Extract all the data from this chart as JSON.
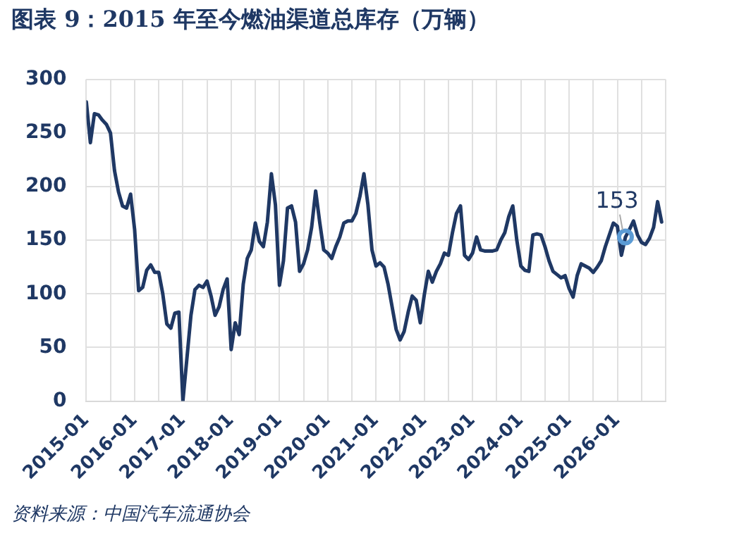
{
  "chart_data": {
    "type": "line",
    "title": "图表 9：2015 年至今燃油渠道总库存（万辆）",
    "x": [
      "2015-01",
      "2015-02",
      "2015-03",
      "2015-04",
      "2015-05",
      "2015-06",
      "2015-07",
      "2015-08",
      "2015-09",
      "2015-10",
      "2015-11",
      "2015-12",
      "2016-01",
      "2016-02",
      "2016-03",
      "2016-04",
      "2016-05",
      "2016-06",
      "2016-07",
      "2016-08",
      "2016-09",
      "2016-10",
      "2016-11",
      "2016-12",
      "2017-01",
      "2017-02",
      "2017-03",
      "2017-04",
      "2017-05",
      "2017-06",
      "2017-07",
      "2017-08",
      "2017-09",
      "2017-10",
      "2017-11",
      "2017-12",
      "2018-01",
      "2018-02",
      "2018-03",
      "2018-04",
      "2018-05",
      "2018-06",
      "2018-07",
      "2018-08",
      "2018-09",
      "2018-10",
      "2018-11",
      "2018-12",
      "2019-01",
      "2019-02",
      "2019-03",
      "2019-04",
      "2019-05",
      "2019-06",
      "2019-07",
      "2019-08",
      "2019-09",
      "2019-10",
      "2019-11",
      "2019-12",
      "2020-01",
      "2020-02",
      "2020-03",
      "2020-04",
      "2020-05",
      "2020-06",
      "2020-07",
      "2020-08",
      "2020-09",
      "2020-10",
      "2020-11",
      "2020-12",
      "2021-01",
      "2021-02",
      "2021-03",
      "2021-04",
      "2021-05",
      "2021-06",
      "2021-07",
      "2021-08",
      "2021-09",
      "2021-10",
      "2021-11",
      "2021-12",
      "2022-01",
      "2022-02",
      "2022-03",
      "2022-04",
      "2022-05",
      "2022-06",
      "2022-07",
      "2022-08",
      "2022-09",
      "2022-10",
      "2022-11",
      "2022-12",
      "2023-01",
      "2023-02",
      "2023-03",
      "2023-04",
      "2023-05",
      "2023-06",
      "2023-07",
      "2023-08",
      "2023-09",
      "2023-10",
      "2023-11",
      "2023-12",
      "2024-01",
      "2024-02",
      "2024-03",
      "2024-04",
      "2024-05",
      "2024-06",
      "2024-07",
      "2024-08",
      "2024-09",
      "2024-10",
      "2024-11",
      "2024-12",
      "2025-01",
      "2025-02",
      "2025-03",
      "2025-04",
      "2025-05",
      "2025-06",
      "2025-07",
      "2025-08",
      "2025-09",
      "2025-10",
      "2025-11",
      "2025-12",
      "2026-01",
      "2026-02",
      "2026-03",
      "2026-04",
      "2026-05",
      "2026-06",
      "2026-07",
      "2026-08",
      "2026-09",
      "2026-10",
      "2026-11",
      "2026-12"
    ],
    "series": [
      {
        "color": "#1f3864",
        "values": [
          279,
          241,
          268,
          267,
          262,
          258,
          250,
          215,
          195,
          182,
          180,
          193,
          160,
          103,
          106,
          122,
          127,
          120,
          120,
          100,
          72,
          68,
          82,
          83,
          0,
          40,
          80,
          104,
          108,
          106,
          112,
          98,
          80,
          88,
          104,
          114,
          48,
          73,
          62,
          109,
          133,
          141,
          166,
          149,
          144,
          167,
          212,
          183,
          108,
          131,
          180,
          182,
          167,
          121,
          128,
          141,
          162,
          196,
          167,
          141,
          138,
          133,
          144,
          153,
          166,
          168,
          168,
          175,
          191,
          212,
          183,
          141,
          126,
          129,
          125,
          109,
          88,
          67,
          57,
          65,
          83,
          98,
          94,
          73,
          99,
          121,
          111,
          121,
          128,
          138,
          136,
          157,
          175,
          182,
          136,
          132,
          138,
          153,
          141,
          140,
          140,
          140,
          141,
          150,
          157,
          172,
          182,
          150,
          126,
          122,
          121,
          155,
          156,
          155,
          144,
          131,
          121,
          118,
          115,
          117,
          105,
          97,
          117,
          128,
          126,
          124,
          120,
          125,
          131,
          144,
          155,
          166,
          163,
          136,
          153,
          160,
          168,
          155,
          148,
          146,
          152,
          162,
          186,
          167
        ]
      }
    ],
    "xlim": [
      "2015-01",
      "2027-01"
    ],
    "xticks": [
      {
        "value": "2015-01",
        "label": "2015-01"
      },
      {
        "value": "2015-07",
        "label": null
      },
      {
        "value": "2016-01",
        "label": "2016-01"
      },
      {
        "value": "2016-07",
        "label": null
      },
      {
        "value": "2017-01",
        "label": "2017-01"
      },
      {
        "value": "2017-07",
        "label": null
      },
      {
        "value": "2018-01",
        "label": "2018-01"
      },
      {
        "value": "2018-07",
        "label": null
      },
      {
        "value": "2019-01",
        "label": "2019-01"
      },
      {
        "value": "2019-07",
        "label": null
      },
      {
        "value": "2020-01",
        "label": "2020-01"
      },
      {
        "value": "2020-07",
        "label": null
      },
      {
        "value": "2021-01",
        "label": "2021-01"
      },
      {
        "value": "2021-07",
        "label": null
      },
      {
        "value": "2022-01",
        "label": "2022-01"
      },
      {
        "value": "2022-07",
        "label": null
      },
      {
        "value": "2023-01",
        "label": "2023-01"
      },
      {
        "value": "2023-07",
        "label": null
      },
      {
        "value": "2024-01",
        "label": "2024-01"
      },
      {
        "value": "2024-07",
        "label": null
      },
      {
        "value": "2025-01",
        "label": "2025-01"
      },
      {
        "value": "2025-07",
        "label": null
      },
      {
        "value": "2026-01",
        "label": "2026-01"
      },
      {
        "value": "2026-07",
        "label": null
      },
      {
        "value": "2027-01",
        "label": null
      }
    ],
    "ylim": [
      0,
      300
    ],
    "yticks": [
      0,
      50,
      100,
      150,
      200,
      250,
      300
    ],
    "grid": true,
    "legend": false,
    "marker": "none",
    "line_style": "solid",
    "annotations": [
      {
        "text": "153",
        "x": "2026-03",
        "y": 153
      },
      "资料来源：中国汽车流通协会"
    ]
  }
}
